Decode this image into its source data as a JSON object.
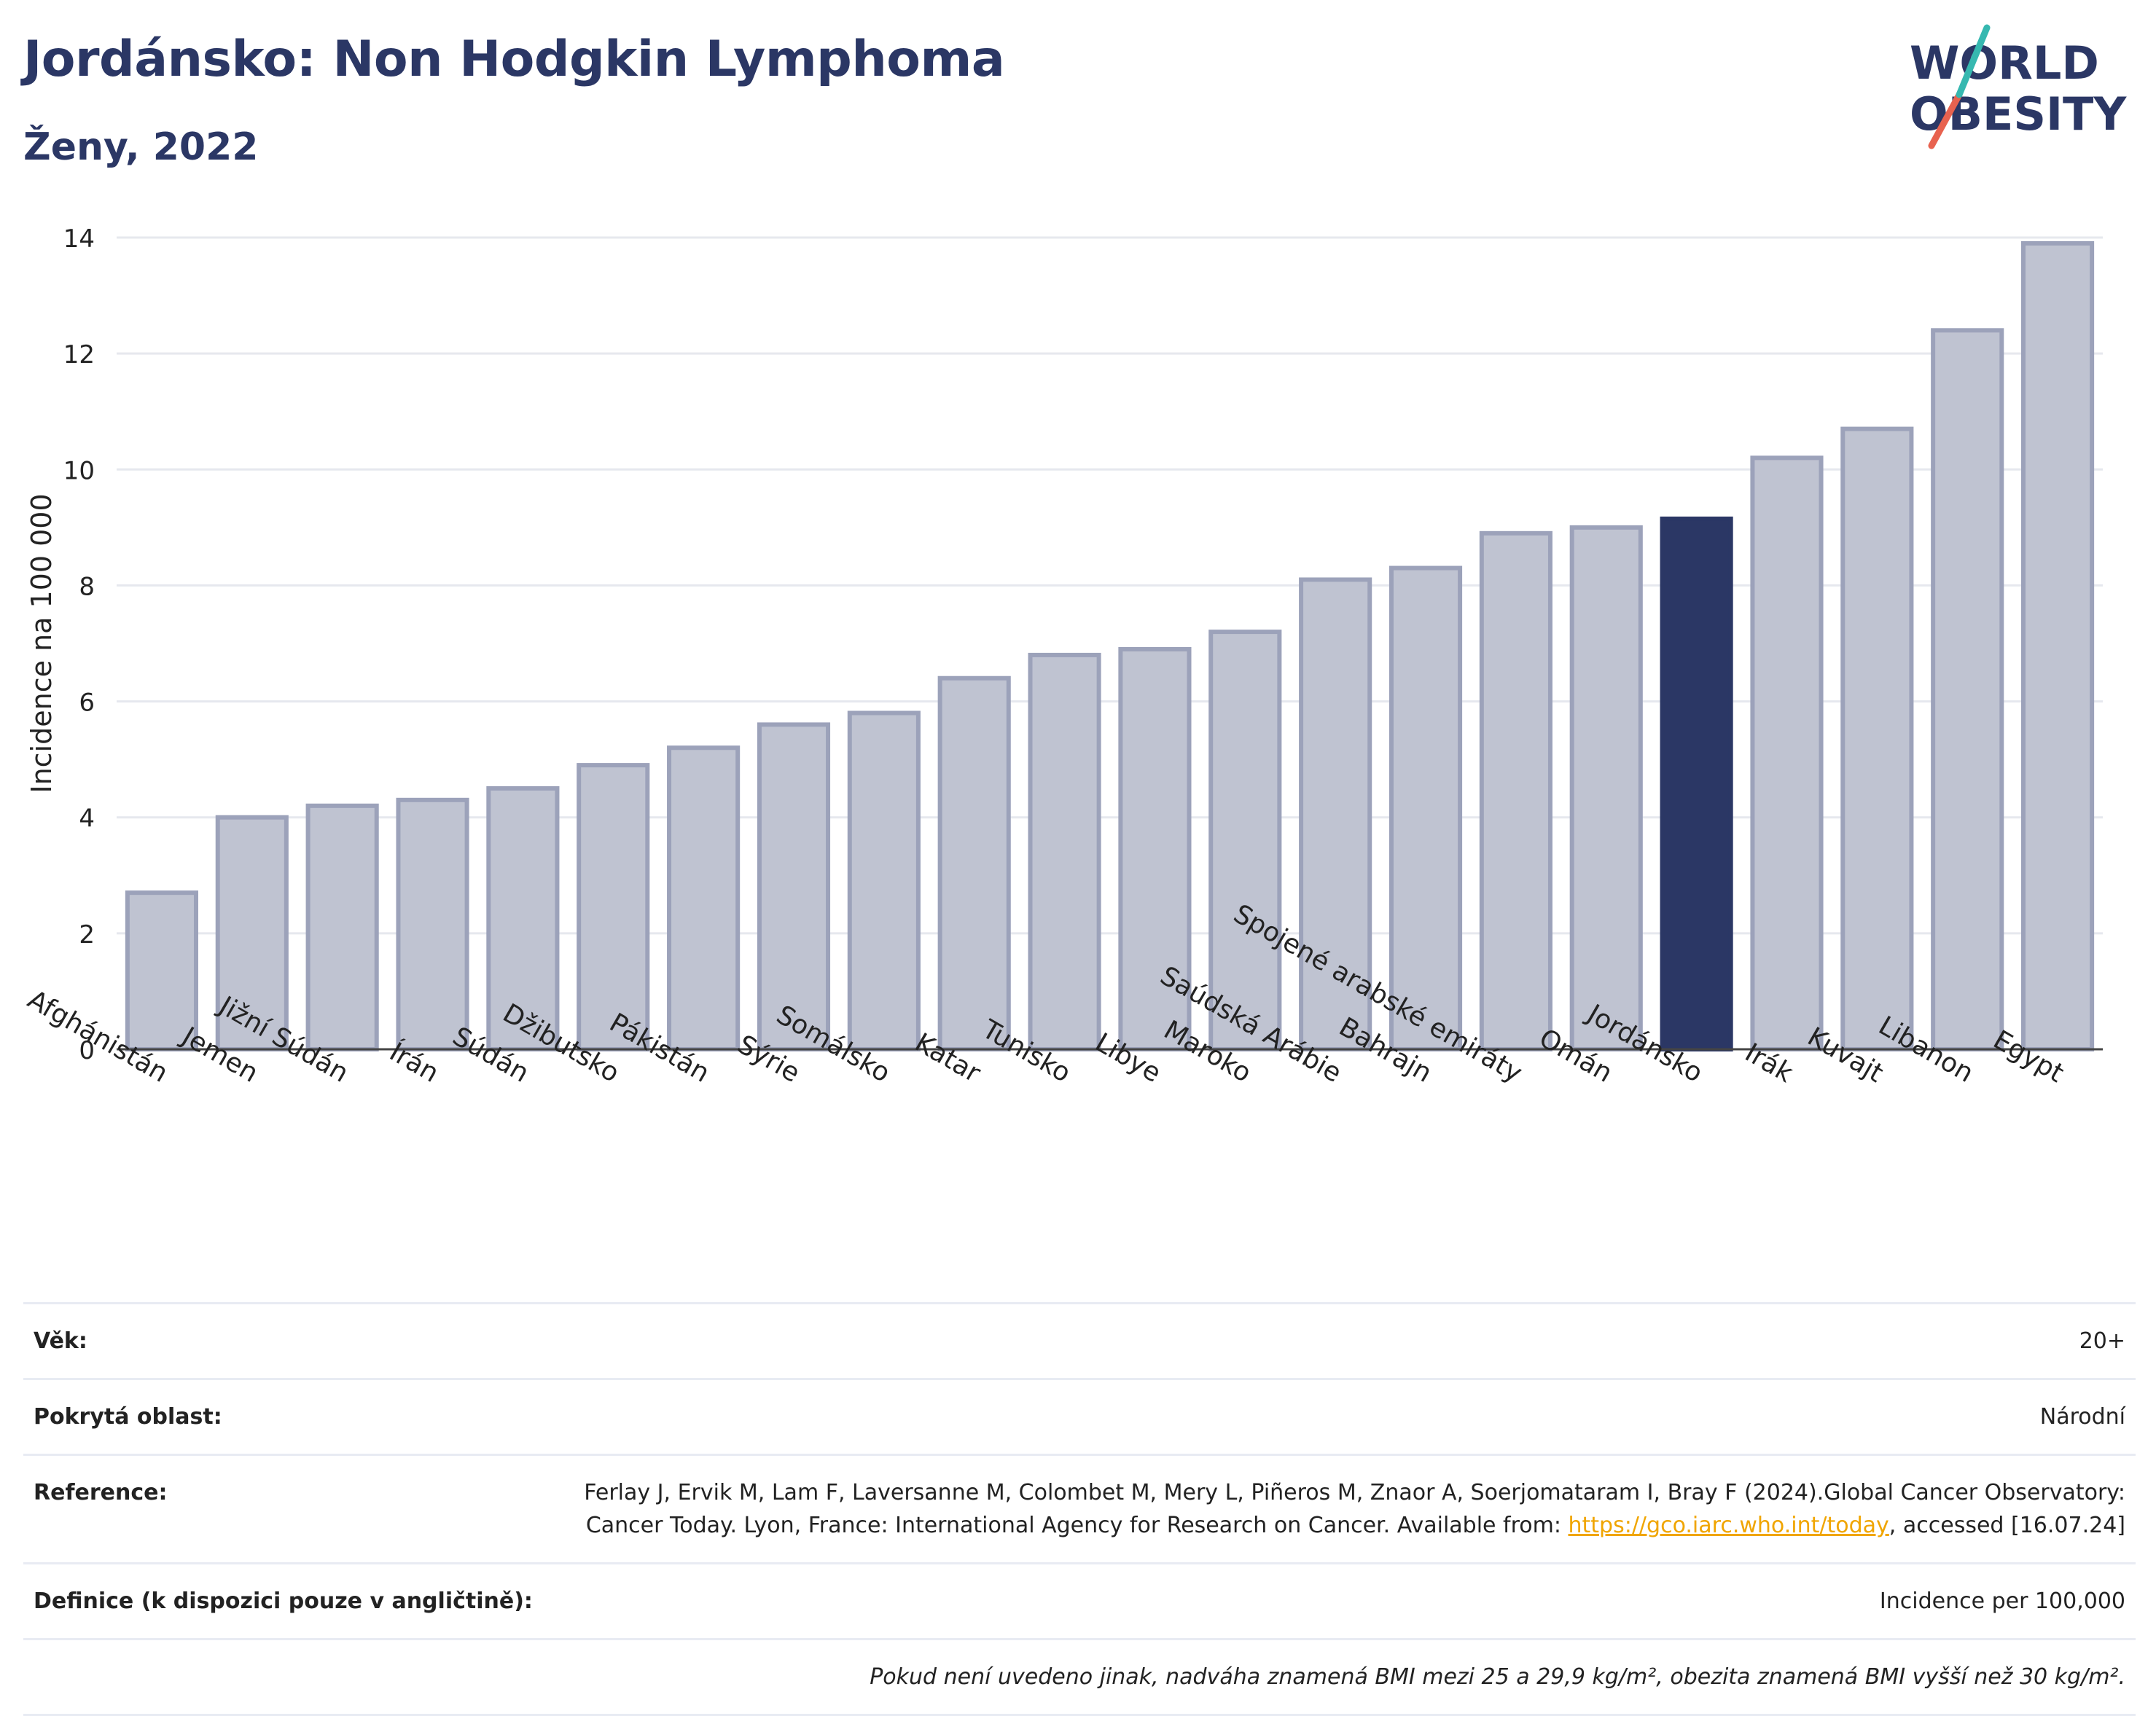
{
  "header": {
    "title": "Jordánsko: Non Hodgkin Lymphoma",
    "subtitle": "Ženy, 2022"
  },
  "logo": {
    "line1": "WORLD",
    "line2": "OBESITY"
  },
  "colors": {
    "highlight": "#2b3765",
    "bar": "#bfc3d1",
    "bar_border": "#9ca2ba",
    "grid": "#e6e8ee"
  },
  "chart_data": {
    "type": "bar",
    "ylabel": "Incidence na 100 000",
    "ylim": [
      0,
      14
    ],
    "yticks": [
      0,
      2,
      4,
      6,
      8,
      10,
      12,
      14
    ],
    "highlight": "Jordánsko",
    "categories": [
      "Afghánistán",
      "Jemen",
      "Jižní Súdán",
      "Írán",
      "Súdán",
      "Džibutsko",
      "Pákistán",
      "Sýrie",
      "Somálsko",
      "Katar",
      "Tunisko",
      "Libye",
      "Maroko",
      "Saúdská Arábie",
      "Bahrajn",
      "Spojené arabské emiráty",
      "Omán",
      "Jordánsko",
      "Irák",
      "Kuvajt",
      "Libanon",
      "Egypt"
    ],
    "values": [
      2.7,
      4.0,
      4.2,
      4.3,
      4.5,
      4.9,
      5.2,
      5.6,
      5.8,
      6.4,
      6.8,
      6.9,
      7.2,
      8.1,
      8.3,
      8.9,
      9.0,
      9.15,
      10.2,
      10.7,
      12.4,
      13.9
    ]
  },
  "info": {
    "age_label": "Věk:",
    "age_value": "20+",
    "area_label": "Pokrytá oblast:",
    "area_value": "Národní",
    "reference_label": "Reference:",
    "reference_text_1": "Ferlay J, Ervik M, Lam F, Laversanne M, Colombet M, Mery L, Piñeros M, Znaor A, Soerjomataram I, Bray F (2024).Global Cancer Observatory: Cancer Today. Lyon, France: International Agency for Research on Cancer. Available from: ",
    "reference_link": "https://gco.iarc.who.int/today",
    "reference_text_2": ", accessed [16.07.24]",
    "definition_label": "Definice (k dispozici pouze v angličtině):",
    "definition_value": "Incidence per 100,000",
    "note": "Pokud není uvedeno jinak, nadváha znamená BMI mezi 25 a 29,9 kg/m², obezita znamená BMI vyšší než 30 kg/m²."
  }
}
